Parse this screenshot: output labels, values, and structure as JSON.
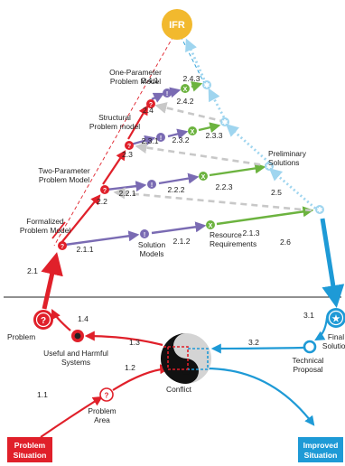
{
  "apex": {
    "label": "IFR",
    "color": "#f2b92e"
  },
  "colors": {
    "red": "#e0202a",
    "blue": "#1e9ad6",
    "lightblue": "#9fd5ef",
    "purple": "#7a6bb3",
    "green": "#6cb33f",
    "gray": "#c8c8c8"
  },
  "models": {
    "one_param": [
      "One-Parameter",
      "Problem Model"
    ],
    "structural": [
      "Structural",
      "Problem model"
    ],
    "two_param": [
      "Two-Parameter",
      "Problem Model"
    ],
    "formalized": [
      "Formalized",
      "Problem Model"
    ]
  },
  "labels": {
    "preliminary": [
      "Preliminary",
      "Solutions"
    ],
    "solution_models": [
      "Solution",
      "Models"
    ],
    "resource_requirements": [
      "Resource",
      "Requirements"
    ],
    "problem": "Problem",
    "final_solution": [
      "Final",
      "Solution"
    ],
    "useful_harmful": [
      "Useful and Harmful",
      "Systems"
    ],
    "technical_proposal": [
      "Technical",
      "Proposal"
    ],
    "conflict": "Conflict",
    "problem_area": [
      "Problem",
      "Area"
    ],
    "problem_situation": [
      "Problem",
      "Situation"
    ],
    "improved_situation": [
      "Improved",
      "Situation"
    ]
  },
  "steps": {
    "s2_4_1": "2.4.1",
    "s2_4_3": "2.4.3",
    "s2_4": "2.4",
    "s2_4_2": "2.4.2",
    "s2_3_1": "2.3.1",
    "s2_3_2": "2.3.2",
    "s2_3_3": "2.3.3",
    "s2_3": "2.3",
    "s2_2": "2.2",
    "s2_2_1": "2.2.1",
    "s2_2_2": "2.2.2",
    "s2_2_3": "2.2.3",
    "s2_5": "2.5",
    "s2_6": "2.6",
    "s2_1": "2.1",
    "s2_1_1": "2.1.1",
    "s2_1_2": "2.1.2",
    "s2_1_3": "2.1.3",
    "s1_1": "1.1",
    "s1_2": "1.2",
    "s1_3": "1.3",
    "s1_4": "1.4",
    "s3_1": "3.1",
    "s3_2": "3.2"
  },
  "glyphs": {
    "question": "?",
    "idea": "!",
    "cross": "X",
    "star": "★",
    "snow": "✱"
  }
}
